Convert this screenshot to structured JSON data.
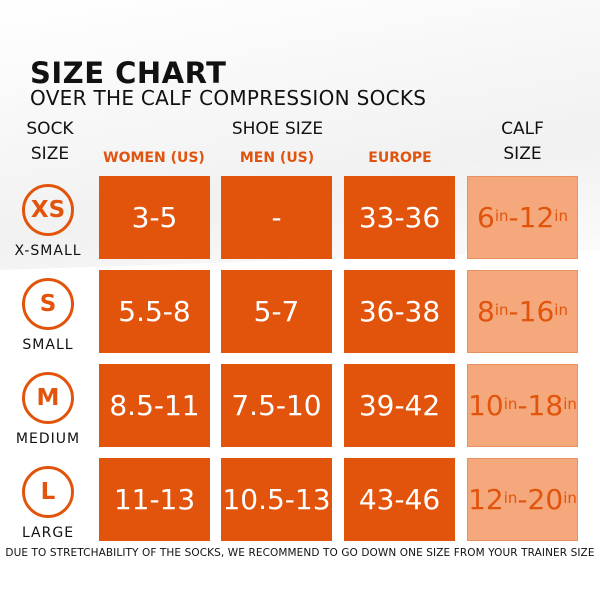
{
  "title": "SIZE CHART",
  "subtitle": "OVER THE CALF COMPRESSION SOCKS",
  "headers": {
    "sock_size_1": "SOCK",
    "sock_size_2": "SIZE",
    "shoe_size": "SHOE SIZE",
    "calf_1": "CALF",
    "calf_2": "SIZE"
  },
  "columns": [
    "WOMEN (US)",
    "MEN (US)",
    "EUROPE"
  ],
  "unit": "in",
  "rows": [
    {
      "code": "XS",
      "name": "X-SMALL",
      "women": "3-5",
      "men": "-",
      "europe": "33-36",
      "calf_min": "6",
      "calf_max": "12"
    },
    {
      "code": "S",
      "name": "SMALL",
      "women": "5.5-8",
      "men": "5-7",
      "europe": "36-38",
      "calf_min": "8",
      "calf_max": "16"
    },
    {
      "code": "M",
      "name": "MEDIUM",
      "women": "8.5-11",
      "men": "7.5-10",
      "europe": "39-42",
      "calf_min": "10",
      "calf_max": "18"
    },
    {
      "code": "L",
      "name": "LARGE",
      "women": "11-13",
      "men": "10.5-13",
      "europe": "43-46",
      "calf_min": "12",
      "calf_max": "20"
    }
  ],
  "footer": "DUE TO STRETCHABILITY OF THE SOCKS, WE RECOMMEND TO GO DOWN ONE SIZE FROM YOUR TRAINER SIZE",
  "colors": {
    "accent": "#e2540c",
    "calf_bg": "#f4a87c"
  }
}
